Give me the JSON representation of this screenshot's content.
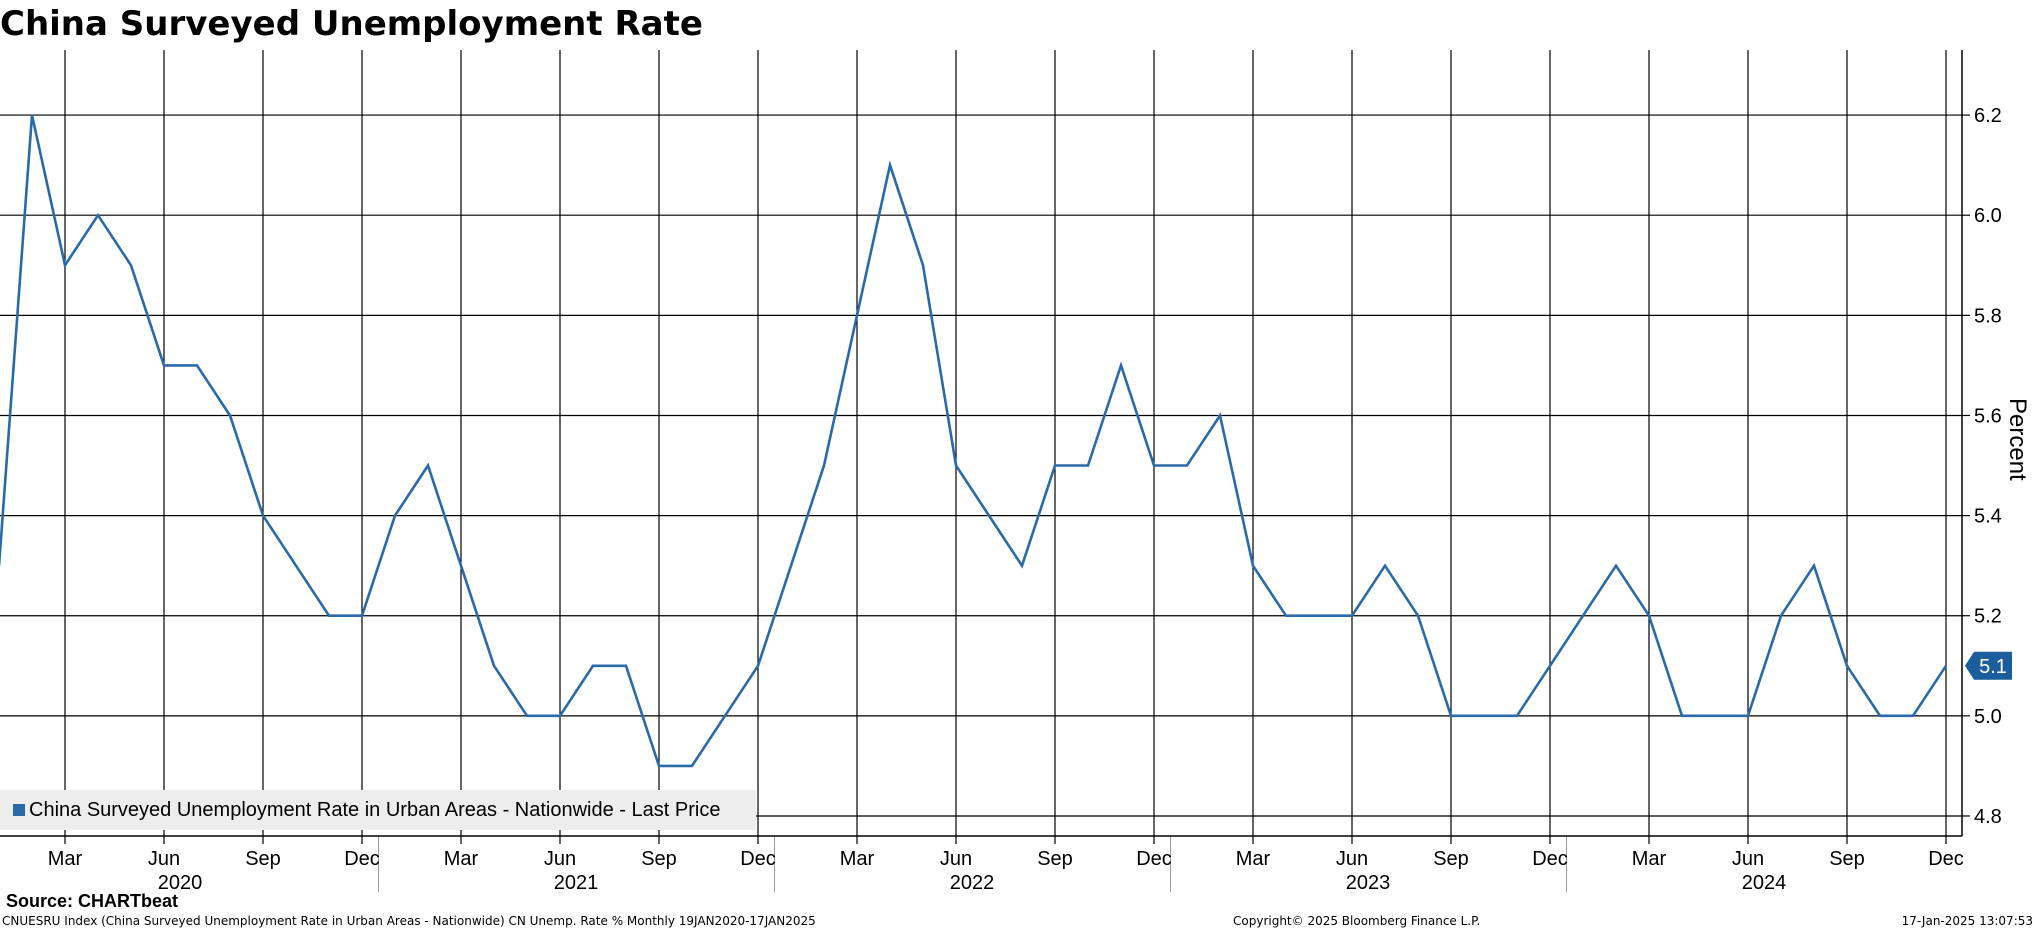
{
  "title": "China Surveyed Unemployment Rate",
  "source": "Source: CHARTbeat",
  "footer": {
    "left": "CNUESRU Index (China Surveyed Unemployment Rate in Urban Areas - Nationwide) CN Unemp. Rate %  Monthly 19JAN2020-17JAN2025",
    "center": "Copyright© 2025 Bloomberg Finance L.P.",
    "right": "17-Jan-2025 13:07:53"
  },
  "colors": {
    "line": "#2a6aa8",
    "last_value_box": "#1c5d9b",
    "grid": "#000000",
    "legend_bg": "#ededed"
  },
  "chart_data": {
    "type": "line",
    "title": "China Surveyed Unemployment Rate",
    "ylabel": "Percent",
    "ylim": [
      4.76,
      6.33
    ],
    "yticks": [
      4.8,
      5.0,
      5.2,
      5.4,
      5.6,
      5.8,
      6.0,
      6.2
    ],
    "xlim": [
      "2020-01",
      "2024-12"
    ],
    "month_ticks": [
      {
        "date": "2020-03",
        "label": "Mar"
      },
      {
        "date": "2020-06",
        "label": "Jun"
      },
      {
        "date": "2020-09",
        "label": "Sep"
      },
      {
        "date": "2020-12",
        "label": "Dec"
      },
      {
        "date": "2021-03",
        "label": "Mar"
      },
      {
        "date": "2021-06",
        "label": "Jun"
      },
      {
        "date": "2021-09",
        "label": "Sep"
      },
      {
        "date": "2021-12",
        "label": "Dec"
      },
      {
        "date": "2022-03",
        "label": "Mar"
      },
      {
        "date": "2022-06",
        "label": "Jun"
      },
      {
        "date": "2022-09",
        "label": "Sep"
      },
      {
        "date": "2022-12",
        "label": "Dec"
      },
      {
        "date": "2023-03",
        "label": "Mar"
      },
      {
        "date": "2023-06",
        "label": "Jun"
      },
      {
        "date": "2023-09",
        "label": "Sep"
      },
      {
        "date": "2023-12",
        "label": "Dec"
      },
      {
        "date": "2024-03",
        "label": "Mar"
      },
      {
        "date": "2024-06",
        "label": "Jun"
      },
      {
        "date": "2024-09",
        "label": "Sep"
      },
      {
        "date": "2024-12",
        "label": "Dec"
      }
    ],
    "year_labels": [
      {
        "date": "2020-06",
        "label": "2020"
      },
      {
        "date": "2021-06",
        "label": "2021"
      },
      {
        "date": "2022-06",
        "label": "2022"
      },
      {
        "date": "2023-06",
        "label": "2023"
      },
      {
        "date": "2024-06",
        "label": "2024"
      }
    ],
    "year_dividers": [
      "2021-01",
      "2022-01",
      "2023-01",
      "2024-01"
    ],
    "legend": "top-left",
    "grid": true,
    "last_value_label": "5.1",
    "series": [
      {
        "name": "China Surveyed Unemployment Rate in Urban Areas - Nationwide - Last Price",
        "color": "#2a6aa8",
        "x": [
          "2020-01",
          "2020-02",
          "2020-03",
          "2020-04",
          "2020-05",
          "2020-06",
          "2020-07",
          "2020-08",
          "2020-09",
          "2020-10",
          "2020-11",
          "2020-12",
          "2021-01",
          "2021-02",
          "2021-03",
          "2021-04",
          "2021-05",
          "2021-06",
          "2021-07",
          "2021-08",
          "2021-09",
          "2021-10",
          "2021-11",
          "2021-12",
          "2022-01",
          "2022-02",
          "2022-03",
          "2022-04",
          "2022-05",
          "2022-06",
          "2022-07",
          "2022-08",
          "2022-09",
          "2022-10",
          "2022-11",
          "2022-12",
          "2023-01",
          "2023-02",
          "2023-03",
          "2023-04",
          "2023-05",
          "2023-06",
          "2023-07",
          "2023-08",
          "2023-09",
          "2023-10",
          "2023-11",
          "2023-12",
          "2024-01",
          "2024-02",
          "2024-03",
          "2024-04",
          "2024-05",
          "2024-06",
          "2024-07",
          "2024-08",
          "2024-09",
          "2024-10",
          "2024-11",
          "2024-12"
        ],
        "values": [
          5.3,
          6.2,
          5.9,
          6.0,
          5.9,
          5.7,
          5.7,
          5.6,
          5.4,
          5.3,
          5.2,
          5.2,
          5.4,
          5.5,
          5.3,
          5.1,
          5.0,
          5.0,
          5.1,
          5.1,
          4.9,
          4.9,
          5.0,
          5.1,
          5.3,
          5.5,
          5.8,
          6.1,
          5.9,
          5.5,
          5.4,
          5.3,
          5.5,
          5.5,
          5.7,
          5.5,
          5.5,
          5.6,
          5.3,
          5.2,
          5.2,
          5.2,
          5.3,
          5.2,
          5.0,
          5.0,
          5.0,
          5.1,
          5.2,
          5.3,
          5.2,
          5.0,
          5.0,
          5.0,
          5.2,
          5.3,
          5.1,
          5.0,
          5.0,
          5.1
        ]
      }
    ]
  }
}
